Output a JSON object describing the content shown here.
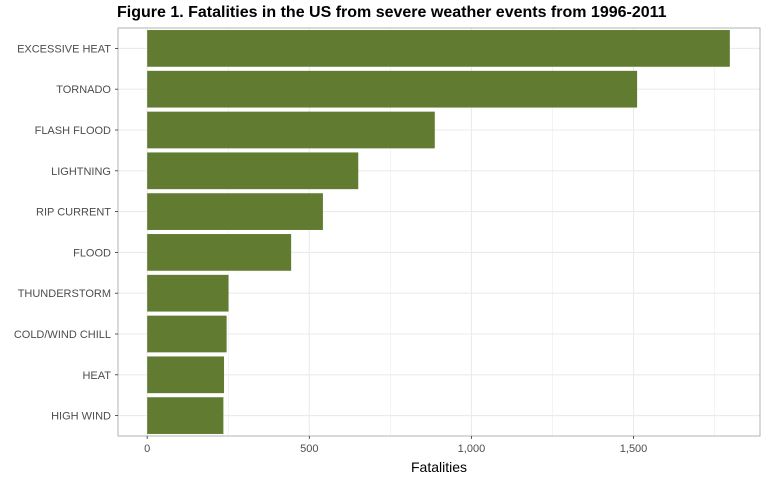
{
  "chart_data": {
    "type": "bar",
    "orientation": "horizontal",
    "title": "Figure 1. Fatalities in the US from severe weather events from 1996-2011",
    "xlabel": "Fatalities",
    "ylabel": "",
    "categories": [
      "EXCESSIVE HEAT",
      "TORNADO",
      "FLASH FLOOD",
      "LIGHTNING",
      "RIP CURRENT",
      "FLOOD",
      "THUNDERSTORM",
      "COLD/WIND CHILL",
      "HEAT",
      "HIGH WIND"
    ],
    "values": [
      1797,
      1511,
      887,
      651,
      542,
      444,
      251,
      245,
      237,
      235
    ],
    "xlim": [
      -90,
      1890
    ],
    "x_ticks": [
      0,
      500,
      1000,
      1500
    ],
    "x_tick_labels": [
      "0",
      "500",
      "1,000",
      "1,500"
    ],
    "grid": true,
    "bar_color": "#617c31",
    "grid_color": "#ebebeb",
    "panel_border_color": "#b3b3b3"
  }
}
